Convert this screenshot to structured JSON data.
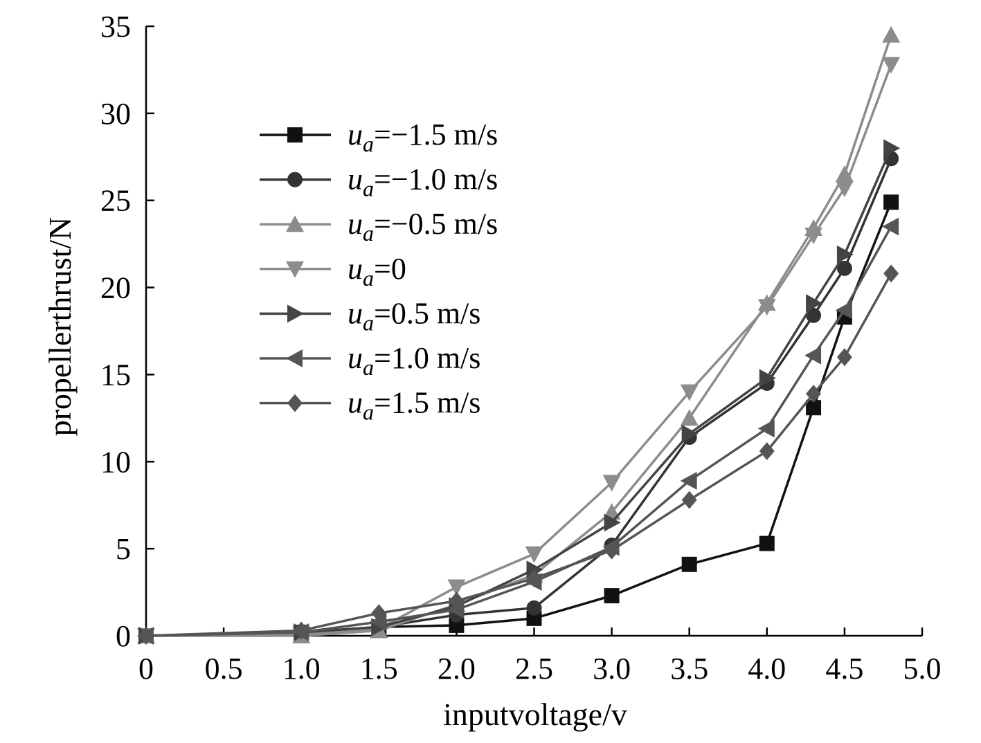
{
  "chart_data": {
    "type": "line",
    "title": "",
    "xlabel": "inputvoltage/v",
    "ylabel": "propellerthrust/N",
    "xlim": [
      0,
      5.0
    ],
    "ylim": [
      0,
      35
    ],
    "xticks": [
      0,
      0.5,
      1.0,
      1.5,
      2.0,
      2.5,
      3.0,
      3.5,
      4.0,
      4.5,
      5.0
    ],
    "xtick_labels": [
      "0",
      "0.5",
      "1.0",
      "1.5",
      "2.0",
      "2.5",
      "3.0",
      "3.5",
      "4.0",
      "4.5",
      "5.0"
    ],
    "yticks": [
      0,
      5,
      10,
      15,
      20,
      25,
      30,
      35
    ],
    "ytick_labels": [
      "0",
      "5",
      "10",
      "15",
      "20",
      "25",
      "30",
      "35"
    ],
    "grid": false,
    "legend_position": "upper-left",
    "x": [
      0,
      1.0,
      1.5,
      2.0,
      2.5,
      3.0,
      3.5,
      4.0,
      4.3,
      4.5,
      4.8
    ],
    "series": [
      {
        "name": "ua=−1.5 m/s",
        "var": "u",
        "sub": "a",
        "rest": "=−1.5 m/s",
        "marker": "square",
        "color": "#111111",
        "values": [
          0,
          0.2,
          0.5,
          0.6,
          1.0,
          2.3,
          4.1,
          5.3,
          13.1,
          18.3,
          24.9
        ]
      },
      {
        "name": "ua=−1.0 m/s",
        "var": "u",
        "sub": "a",
        "rest": "=−1.0 m/s",
        "marker": "circle",
        "color": "#333333",
        "values": [
          0,
          0.2,
          0.5,
          1.2,
          1.6,
          5.2,
          11.4,
          14.5,
          18.4,
          21.1,
          27.4
        ]
      },
      {
        "name": "ua=−0.5 m/s",
        "var": "u",
        "sub": "a",
        "rest": "=−0.5 m/s",
        "marker": "triangle-up",
        "color": "#8c8c8c",
        "values": [
          0,
          0.0,
          0.3,
          1.8,
          3.5,
          7.1,
          12.5,
          19.1,
          23.4,
          26.5,
          34.5
        ]
      },
      {
        "name": "ua=0",
        "var": "u",
        "sub": "a",
        "rest": "=0",
        "marker": "triangle-down",
        "color": "#8c8c8c",
        "values": [
          0,
          0.1,
          0.4,
          2.8,
          4.7,
          8.8,
          14.0,
          18.9,
          23.0,
          25.7,
          32.8
        ]
      },
      {
        "name": "ua=0.5 m/s",
        "var": "u",
        "sub": "a",
        "rest": "=0.5 m/s",
        "marker": "triangle-right",
        "color": "#444444",
        "values": [
          0,
          0.2,
          0.5,
          1.7,
          3.8,
          6.5,
          11.6,
          14.8,
          19.1,
          21.9,
          28.0
        ]
      },
      {
        "name": "ua=1.0 m/s",
        "var": "u",
        "sub": "a",
        "rest": "=1.0 m/s",
        "marker": "triangle-left",
        "color": "#555555",
        "values": [
          0,
          0.2,
          0.8,
          1.5,
          3.1,
          5.1,
          8.9,
          11.9,
          16.1,
          18.7,
          23.5
        ]
      },
      {
        "name": "ua=1.5 m/s",
        "var": "u",
        "sub": "a",
        "rest": "=1.5 m/s",
        "marker": "diamond",
        "color": "#555555",
        "values": [
          0,
          0.3,
          1.3,
          2.0,
          3.3,
          4.9,
          7.8,
          10.6,
          13.9,
          16.0,
          20.8
        ]
      }
    ]
  }
}
